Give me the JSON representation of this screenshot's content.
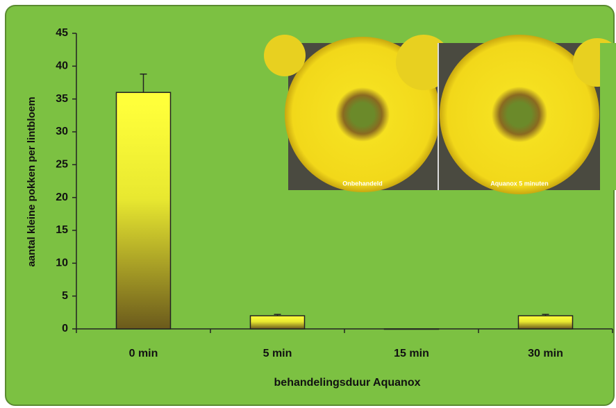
{
  "chart_data": {
    "type": "bar",
    "categories": [
      "0 min",
      "5 min",
      "15 min",
      "30 min"
    ],
    "values": [
      36,
      2,
      0,
      2
    ],
    "errors": [
      2.8,
      0.2,
      0,
      0.2
    ],
    "x_label": "behandelingsduur Aquanox",
    "y_label": "aantal kleine pokken per lintbloem",
    "ylim": [
      0,
      45
    ],
    "yticks": [
      0,
      5,
      10,
      15,
      20,
      25,
      30,
      35,
      40,
      45
    ],
    "color_top": "#ffff3a",
    "color_bottom": "#6b5a1c",
    "background": "#7cc142",
    "photos": [
      {
        "label": "Onbehandeld"
      },
      {
        "label": "Aquanox 5 minuten"
      }
    ]
  }
}
